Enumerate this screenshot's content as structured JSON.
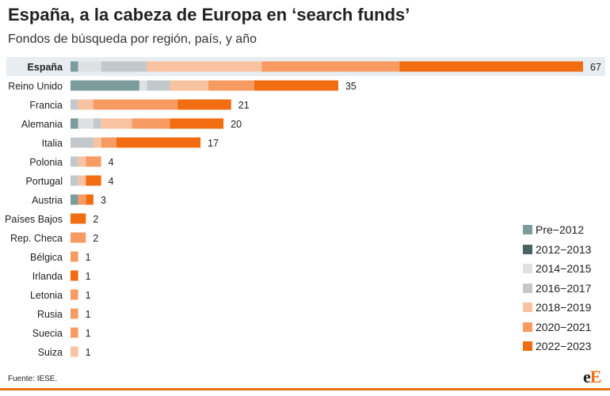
{
  "title": "España, a la cabeza de Europa en ‘search funds’",
  "subtitle": "Fondos de búsqueda por región, país, y año",
  "source": "Fuente: IESE.",
  "logo": {
    "first": "e",
    "second": "E"
  },
  "colors": {
    "pre2012": "#7b9b9c",
    "y2012_2013": "#4d6264",
    "y2014_2015": "#dde1e4",
    "y2016_2017": "#c3c8cc",
    "y2018_2019": "#f9c3a1",
    "y2020_2021": "#f79b62",
    "y2022_2023": "#f26d12",
    "highlight_row": "#e8edf1",
    "accent": "#f26d12"
  },
  "chart_data": {
    "type": "bar",
    "orientation": "horizontal",
    "stacked": true,
    "categories": [
      "España",
      "Reino Unido",
      "Francia",
      "Alemania",
      "Italia",
      "Polonia",
      "Portugal",
      "Austria",
      "Países Bajos",
      "Rep. Checa",
      "Bélgica",
      "Irlanda",
      "Letonia",
      "Rusia",
      "Suecia",
      "Suiza"
    ],
    "totals": [
      67,
      35,
      21,
      20,
      17,
      4,
      4,
      3,
      2,
      2,
      1,
      1,
      1,
      1,
      1,
      1
    ],
    "highlighted_category": "España",
    "series": [
      {
        "name": "Pre−2012",
        "color_key": "pre2012",
        "values": [
          1,
          9,
          0,
          1,
          0,
          0,
          0,
          1,
          0,
          0,
          0,
          0,
          0,
          0,
          0,
          0
        ]
      },
      {
        "name": "2012−2013",
        "color_key": "y2012_2013",
        "values": [
          0,
          0,
          0,
          0,
          0,
          0,
          0,
          0,
          0,
          0,
          0,
          0,
          0,
          0,
          0,
          0
        ]
      },
      {
        "name": "2014−2015",
        "color_key": "y2014_2015",
        "values": [
          3,
          1,
          0,
          2,
          0,
          0,
          0,
          0,
          0,
          0,
          0,
          0,
          0,
          0,
          0,
          0
        ]
      },
      {
        "name": "2016−2017",
        "color_key": "y2016_2017",
        "values": [
          6,
          3,
          1,
          1,
          3,
          1,
          1,
          0,
          0,
          0,
          0,
          0,
          0,
          0,
          0,
          0
        ]
      },
      {
        "name": "2018−2019",
        "color_key": "y2018_2019",
        "values": [
          15,
          5,
          2,
          4,
          1,
          1,
          1,
          0,
          0,
          0,
          0,
          0,
          0,
          0,
          0,
          1
        ]
      },
      {
        "name": "2020−2021",
        "color_key": "y2020_2021",
        "values": [
          18,
          6,
          11,
          5,
          2,
          2,
          0,
          1,
          0,
          2,
          1,
          0,
          1,
          1,
          1,
          0
        ]
      },
      {
        "name": "2022−2023",
        "color_key": "y2022_2023",
        "values": [
          24,
          11,
          7,
          7,
          11,
          0,
          2,
          1,
          2,
          0,
          0,
          1,
          0,
          0,
          0,
          0
        ]
      }
    ],
    "xlim": [
      0,
      67
    ],
    "xlabel": "",
    "ylabel": "",
    "grid": false,
    "legend_position": "bottom-right"
  }
}
